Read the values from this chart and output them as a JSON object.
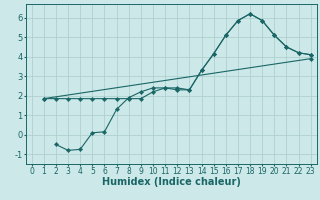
{
  "xlabel": "Humidex (Indice chaleur)",
  "bg_color": "#cce8e8",
  "grid_color": "#b0d0d0",
  "line_color": "#1a6666",
  "xlim": [
    -0.5,
    23.5
  ],
  "ylim": [
    -1.5,
    6.7
  ],
  "xticks": [
    0,
    1,
    2,
    3,
    4,
    5,
    6,
    7,
    8,
    9,
    10,
    11,
    12,
    13,
    14,
    15,
    16,
    17,
    18,
    19,
    20,
    21,
    22,
    23
  ],
  "yticks": [
    -1,
    0,
    1,
    2,
    3,
    4,
    5,
    6
  ],
  "series1_x": [
    1,
    2,
    3,
    4,
    5,
    6,
    7,
    8,
    9,
    10,
    11,
    12,
    13,
    14,
    15,
    16,
    17,
    18,
    19,
    20,
    21,
    22,
    23
  ],
  "series1_y": [
    1.85,
    1.85,
    1.85,
    1.85,
    1.85,
    1.85,
    1.85,
    1.85,
    1.85,
    2.2,
    2.4,
    2.4,
    2.3,
    3.3,
    4.15,
    5.1,
    5.85,
    6.2,
    5.85,
    5.1,
    4.5,
    4.2,
    4.1
  ],
  "series2_x": [
    2,
    3,
    4,
    5,
    6,
    7,
    8,
    9,
    10,
    11,
    12,
    13,
    14,
    15,
    16,
    17,
    18,
    19,
    20,
    21,
    22,
    23
  ],
  "series2_y": [
    -0.5,
    -0.8,
    -0.75,
    0.1,
    0.15,
    1.3,
    1.9,
    2.2,
    2.4,
    2.4,
    2.3,
    2.3,
    3.3,
    4.15,
    5.1,
    5.85,
    6.2,
    5.85,
    5.1,
    4.5,
    4.2,
    4.1
  ],
  "series3_x": [
    1,
    23
  ],
  "series3_y": [
    1.85,
    3.9
  ],
  "font_size_xlabel": 7,
  "font_size_tick": 5.5
}
